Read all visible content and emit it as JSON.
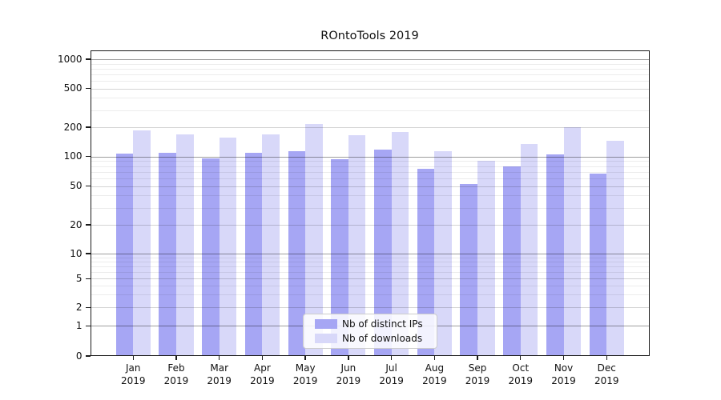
{
  "chart_data": {
    "type": "bar",
    "title": "ROntoTools 2019",
    "categories": [
      "Jan",
      "Feb",
      "Mar",
      "Apr",
      "May",
      "Jun",
      "Jul",
      "Aug",
      "Sep",
      "Oct",
      "Nov",
      "Dec"
    ],
    "category_year": "2019",
    "series": [
      {
        "name": "Nb of distinct IPs",
        "color": "#a6a6f4",
        "values": [
          107,
          110,
          96,
          109,
          113,
          94,
          117,
          75,
          53,
          80,
          106,
          67
        ]
      },
      {
        "name": "Nb of downloads",
        "color": "#d8d8f9",
        "values": [
          187,
          170,
          157,
          170,
          217,
          165,
          179,
          113,
          91,
          135,
          200,
          146
        ]
      }
    ],
    "yscale": "symlog",
    "y_ticks": [
      0,
      1,
      2,
      5,
      10,
      20,
      50,
      100,
      200,
      500,
      1000
    ],
    "y_minor_ticks": [
      3,
      4,
      6,
      7,
      8,
      9,
      30,
      40,
      60,
      70,
      80,
      90,
      300,
      400,
      600,
      700,
      800,
      900
    ],
    "ylim": [
      0,
      1250
    ],
    "xlabel": "",
    "ylabel": "",
    "grid": true,
    "legend_position": "lower center"
  },
  "colors": {
    "axis": "#1a1a1a",
    "background": "#ffffff",
    "legend_border": "#cccccc",
    "text": "#111111"
  }
}
